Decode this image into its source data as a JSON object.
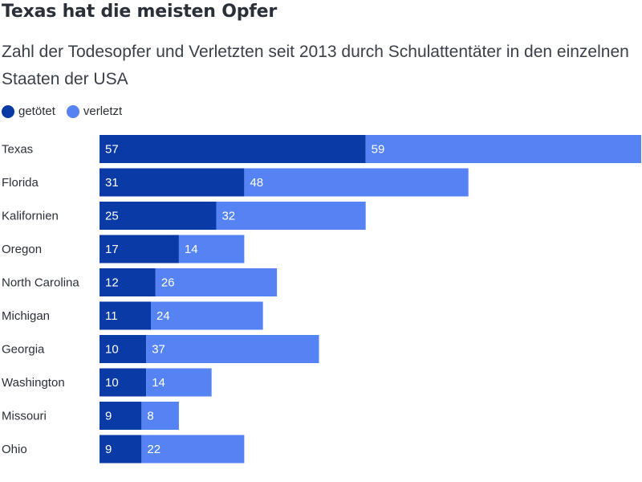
{
  "title": "Texas hat die meisten Opfer",
  "subtitle": "Zahl der Todesopfer und Verletzten seit 2013 durch Schulattentäter in den einzelnen Staaten der USA",
  "legend": {
    "killed": "getötet",
    "injured": "verletzt"
  },
  "colors": {
    "killed": "#0a3aa6",
    "injured": "#5683f3"
  },
  "chart_data": {
    "type": "bar",
    "orientation": "horizontal",
    "stacked": true,
    "categories": [
      "Texas",
      "Florida",
      "Kalifornien",
      "Oregon",
      "North Carolina",
      "Michigan",
      "Georgia",
      "Washington",
      "Missouri",
      "Ohio"
    ],
    "series": [
      {
        "name": "getötet",
        "values": [
          57,
          31,
          25,
          17,
          12,
          11,
          10,
          10,
          9,
          9
        ]
      },
      {
        "name": "verletzt",
        "values": [
          59,
          48,
          32,
          14,
          26,
          24,
          37,
          14,
          8,
          22
        ]
      }
    ],
    "xlim": [
      0,
      116
    ],
    "grid": false,
    "legend_position": "top-left"
  }
}
